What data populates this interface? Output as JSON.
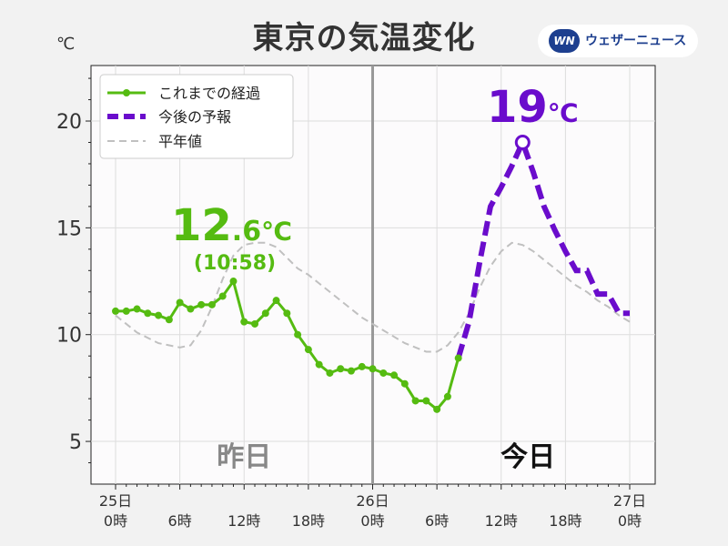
{
  "title": "東京の気温変化",
  "brand": {
    "mark": "WN",
    "name": "ウェザーニュース"
  },
  "chart_data": {
    "type": "line",
    "y_unit": "℃",
    "xlim": [
      0,
      48
    ],
    "ylim": [
      3,
      22.6
    ],
    "yticks": [
      5,
      10,
      15,
      20
    ],
    "x_ticks": [
      {
        "x": 0,
        "label": [
          "25日",
          "0時"
        ]
      },
      {
        "x": 6,
        "label": [
          "6時"
        ]
      },
      {
        "x": 12,
        "label": [
          "12時"
        ]
      },
      {
        "x": 18,
        "label": [
          "18時"
        ]
      },
      {
        "x": 24,
        "label": [
          "26日",
          "0時"
        ]
      },
      {
        "x": 30,
        "label": [
          "6時"
        ]
      },
      {
        "x": 36,
        "label": [
          "12時"
        ]
      },
      {
        "x": 42,
        "label": [
          "18時"
        ]
      },
      {
        "x": 48,
        "label": [
          "27日",
          "0時"
        ]
      }
    ],
    "divider_x": 24,
    "day_labels": [
      {
        "x": 12,
        "text": "昨日"
      },
      {
        "x": 38.5,
        "text": "今日"
      }
    ],
    "legend": [
      {
        "name": "これまでの経過",
        "color": "#55bb11"
      },
      {
        "name": "今後の予報",
        "color": "#6a0ccc"
      },
      {
        "name": "平年値",
        "color": "#c0c0c0"
      }
    ],
    "series": [
      {
        "name": "これまでの経過",
        "color": "#55bb11",
        "style": "solid-markers",
        "points": [
          [
            0,
            11.1
          ],
          [
            1,
            11.1
          ],
          [
            2,
            11.2
          ],
          [
            3,
            11.0
          ],
          [
            4,
            10.9
          ],
          [
            5,
            10.7
          ],
          [
            6,
            11.5
          ],
          [
            7,
            11.2
          ],
          [
            8,
            11.4
          ],
          [
            9,
            11.4
          ],
          [
            10,
            11.8
          ],
          [
            11,
            12.5
          ],
          [
            12,
            10.6
          ],
          [
            13,
            10.5
          ],
          [
            14,
            11.0
          ],
          [
            15,
            11.6
          ],
          [
            16,
            11.0
          ],
          [
            17,
            10.0
          ],
          [
            18,
            9.3
          ],
          [
            19,
            8.6
          ],
          [
            20,
            8.2
          ],
          [
            21,
            8.4
          ],
          [
            22,
            8.3
          ],
          [
            23,
            8.5
          ],
          [
            24,
            8.4
          ],
          [
            25,
            8.2
          ],
          [
            26,
            8.1
          ],
          [
            27,
            7.7
          ],
          [
            28,
            6.9
          ],
          [
            29,
            6.9
          ],
          [
            30,
            6.5
          ],
          [
            31,
            7.1
          ],
          [
            32,
            8.9
          ]
        ]
      },
      {
        "name": "今後の予報",
        "color": "#6a0ccc",
        "style": "dashed",
        "points": [
          [
            32,
            8.9
          ],
          [
            33,
            10.6
          ],
          [
            34,
            13.4
          ],
          [
            35,
            16.0
          ],
          [
            36,
            16.9
          ],
          [
            37,
            17.9
          ],
          [
            38,
            19.0
          ],
          [
            39,
            17.6
          ],
          [
            40,
            16.0
          ],
          [
            41,
            14.9
          ],
          [
            42,
            13.9
          ],
          [
            43,
            13.0
          ],
          [
            44,
            13.0
          ],
          [
            45,
            11.9
          ],
          [
            46,
            11.9
          ],
          [
            47,
            11.0
          ],
          [
            48,
            11.0
          ]
        ]
      },
      {
        "name": "平年値",
        "color": "#c0c0c0",
        "style": "dashed",
        "points": [
          [
            0,
            10.9
          ],
          [
            2,
            10.1
          ],
          [
            4,
            9.6
          ],
          [
            6,
            9.4
          ],
          [
            7,
            9.5
          ],
          [
            8,
            10.2
          ],
          [
            9,
            11.3
          ],
          [
            10,
            12.6
          ],
          [
            11,
            13.7
          ],
          [
            12,
            14.2
          ],
          [
            13,
            14.3
          ],
          [
            14,
            14.3
          ],
          [
            15,
            14.1
          ],
          [
            16,
            13.6
          ],
          [
            17,
            13.1
          ],
          [
            18,
            12.8
          ],
          [
            19,
            12.4
          ],
          [
            20,
            12.0
          ],
          [
            21,
            11.6
          ],
          [
            22,
            11.2
          ],
          [
            23,
            10.8
          ],
          [
            24,
            10.5
          ],
          [
            25,
            10.2
          ],
          [
            26,
            9.9
          ],
          [
            27,
            9.6
          ],
          [
            28,
            9.4
          ],
          [
            29,
            9.2
          ],
          [
            30,
            9.2
          ],
          [
            31,
            9.5
          ],
          [
            32,
            10.1
          ],
          [
            33,
            11.0
          ],
          [
            34,
            12.2
          ],
          [
            35,
            13.2
          ],
          [
            36,
            13.9
          ],
          [
            37,
            14.3
          ],
          [
            38,
            14.2
          ],
          [
            39,
            13.9
          ],
          [
            40,
            13.5
          ],
          [
            41,
            13.1
          ],
          [
            42,
            12.7
          ],
          [
            43,
            12.3
          ],
          [
            44,
            12.0
          ],
          [
            45,
            11.6
          ],
          [
            46,
            11.3
          ],
          [
            47,
            10.9
          ],
          [
            48,
            10.6
          ]
        ]
      }
    ],
    "max_annotation": {
      "x": 10.3,
      "y": 12.6,
      "int": "12",
      "dec": ".6",
      "unit": "℃",
      "time": "(10:58)",
      "color": "#55bb11"
    },
    "forecast_max": {
      "x": 38,
      "y": 19,
      "value": "19",
      "unit": "℃",
      "color": "#6a0ccc"
    }
  }
}
